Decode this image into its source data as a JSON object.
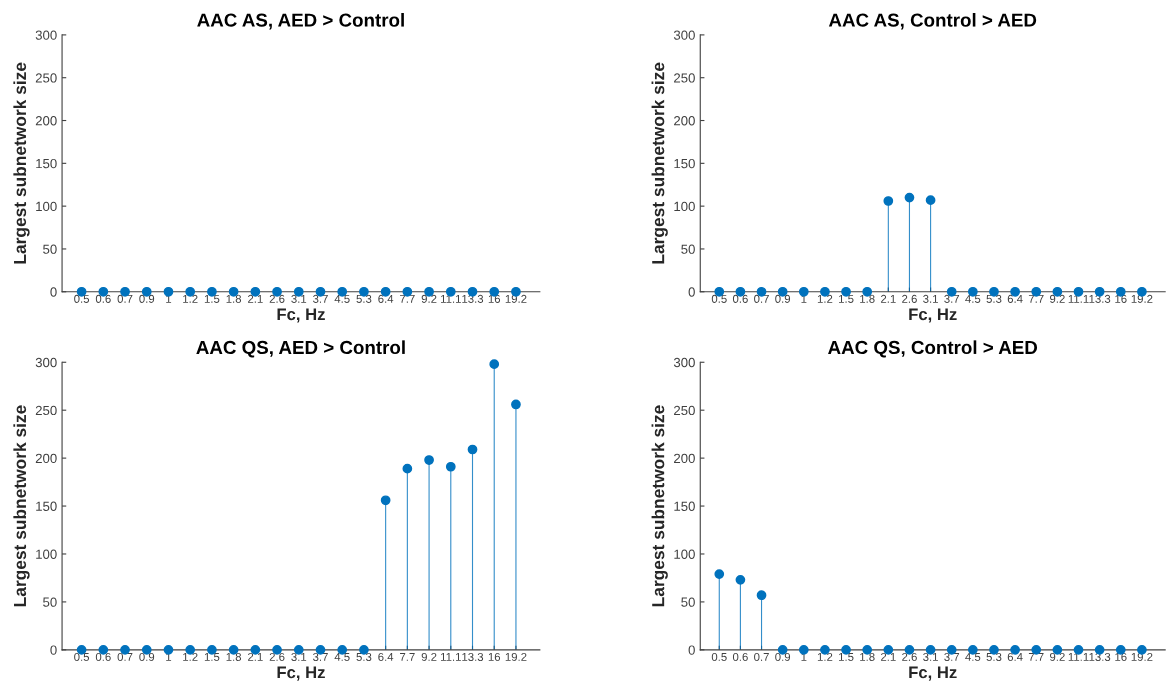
{
  "chart_data": [
    {
      "type": "lollipop",
      "title": "AAC AS, AED > Control",
      "xlabel": "Fc, Hz",
      "ylabel": "Largest subnetwork size",
      "categories": [
        "0.5",
        "0.6",
        "0.7",
        "0.9",
        "1",
        "1.2",
        "1.5",
        "1.8",
        "2.1",
        "2.6",
        "3.1",
        "3.7",
        "4.5",
        "5.3",
        "6.4",
        "7.7",
        "9.2",
        "11.1",
        "13.3",
        "16",
        "19.2"
      ],
      "values": [
        0,
        0,
        0,
        0,
        0,
        0,
        0,
        0,
        0,
        0,
        0,
        0,
        0,
        0,
        0,
        0,
        0,
        0,
        0,
        0,
        0
      ],
      "color": "#0072bd",
      "ylim": [
        0,
        300
      ],
      "yticks": [
        0,
        50,
        100,
        150,
        200,
        250,
        300
      ],
      "marker": "circle"
    },
    {
      "type": "lollipop",
      "title": "AAC AS, Control > AED",
      "xlabel": "Fc, Hz",
      "ylabel": "Largest subnetwork size",
      "categories": [
        "0.5",
        "0.6",
        "0.7",
        "0.9",
        "1",
        "1.2",
        "1.5",
        "1.8",
        "2.1",
        "2.6",
        "3.1",
        "3.7",
        "4.5",
        "5.3",
        "6.4",
        "7.7",
        "9.2",
        "11.1",
        "13.3",
        "16",
        "19.2"
      ],
      "values": [
        0,
        0,
        0,
        0,
        0,
        0,
        0,
        0,
        106,
        110,
        107,
        0,
        0,
        0,
        0,
        0,
        0,
        0,
        0,
        0,
        0
      ],
      "color": "#0072bd",
      "ylim": [
        0,
        300
      ],
      "yticks": [
        0,
        50,
        100,
        150,
        200,
        250,
        300
      ],
      "marker": "circle"
    },
    {
      "type": "lollipop",
      "title": "AAC QS, AED > Control",
      "xlabel": "Fc, Hz",
      "ylabel": "Largest subnetwork size",
      "categories": [
        "0.5",
        "0.6",
        "0.7",
        "0.9",
        "1",
        "1.2",
        "1.5",
        "1.8",
        "2.1",
        "2.6",
        "3.1",
        "3.7",
        "4.5",
        "5.3",
        "6.4",
        "7.7",
        "9.2",
        "11.1",
        "13.3",
        "16",
        "19.2"
      ],
      "values": [
        0,
        0,
        0,
        0,
        0,
        0,
        0,
        0,
        0,
        0,
        0,
        0,
        0,
        0,
        156,
        189,
        198,
        191,
        209,
        298,
        256
      ],
      "color": "#0072bd",
      "ylim": [
        0,
        300
      ],
      "yticks": [
        0,
        50,
        100,
        150,
        200,
        250,
        300
      ],
      "marker": "circle"
    },
    {
      "type": "lollipop",
      "title": "AAC QS, Control > AED",
      "xlabel": "Fc, Hz",
      "ylabel": "Largest subnetwork size",
      "categories": [
        "0.5",
        "0.6",
        "0.7",
        "0.9",
        "1",
        "1.2",
        "1.5",
        "1.8",
        "2.1",
        "2.6",
        "3.1",
        "3.7",
        "4.5",
        "5.3",
        "6.4",
        "7.7",
        "9.2",
        "11.1",
        "13.3",
        "16",
        "19.2"
      ],
      "values": [
        79,
        73,
        57,
        0,
        0,
        0,
        0,
        0,
        0,
        0,
        0,
        0,
        0,
        0,
        0,
        0,
        0,
        0,
        0,
        0,
        0
      ],
      "color": "#0072bd",
      "ylim": [
        0,
        300
      ],
      "yticks": [
        0,
        50,
        100,
        150,
        200,
        250,
        300
      ],
      "marker": "circle"
    }
  ]
}
